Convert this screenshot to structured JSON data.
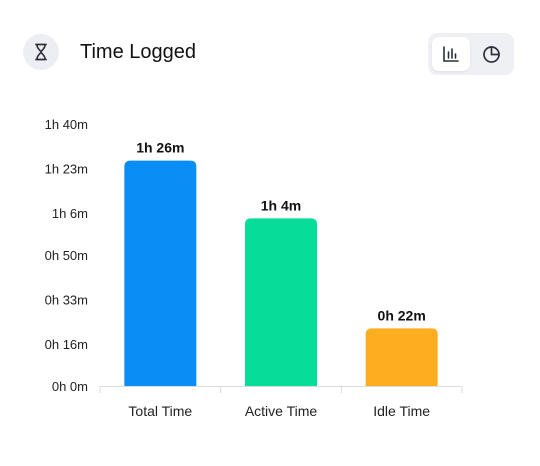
{
  "header": {
    "title": "Time Logged",
    "icon": "hourglass-icon"
  },
  "view_toggle": {
    "options": [
      {
        "name": "bar-chart-view",
        "icon": "bar-chart-icon",
        "selected": true
      },
      {
        "name": "pie-chart-view",
        "icon": "pie-chart-icon",
        "selected": false
      }
    ]
  },
  "chart_data": {
    "type": "bar",
    "categories": [
      "Total Time",
      "Active Time",
      "Idle Time"
    ],
    "values": [
      86,
      64,
      22
    ],
    "value_labels": [
      "1h 26m",
      "1h 4m",
      "0h 22m"
    ],
    "colors": [
      "#0a8df5",
      "#07dc98",
      "#fdad1f"
    ],
    "y_ticks": [
      0,
      16,
      33,
      50,
      66,
      83,
      100
    ],
    "y_tick_labels": [
      "0h 0m",
      "0h 16m",
      "0h 33m",
      "0h 50m",
      "1h 6m",
      "1h 23m",
      "1h 40m"
    ],
    "ylim": [
      0,
      100
    ],
    "unit": "minutes",
    "grid": false,
    "legend": "none"
  }
}
